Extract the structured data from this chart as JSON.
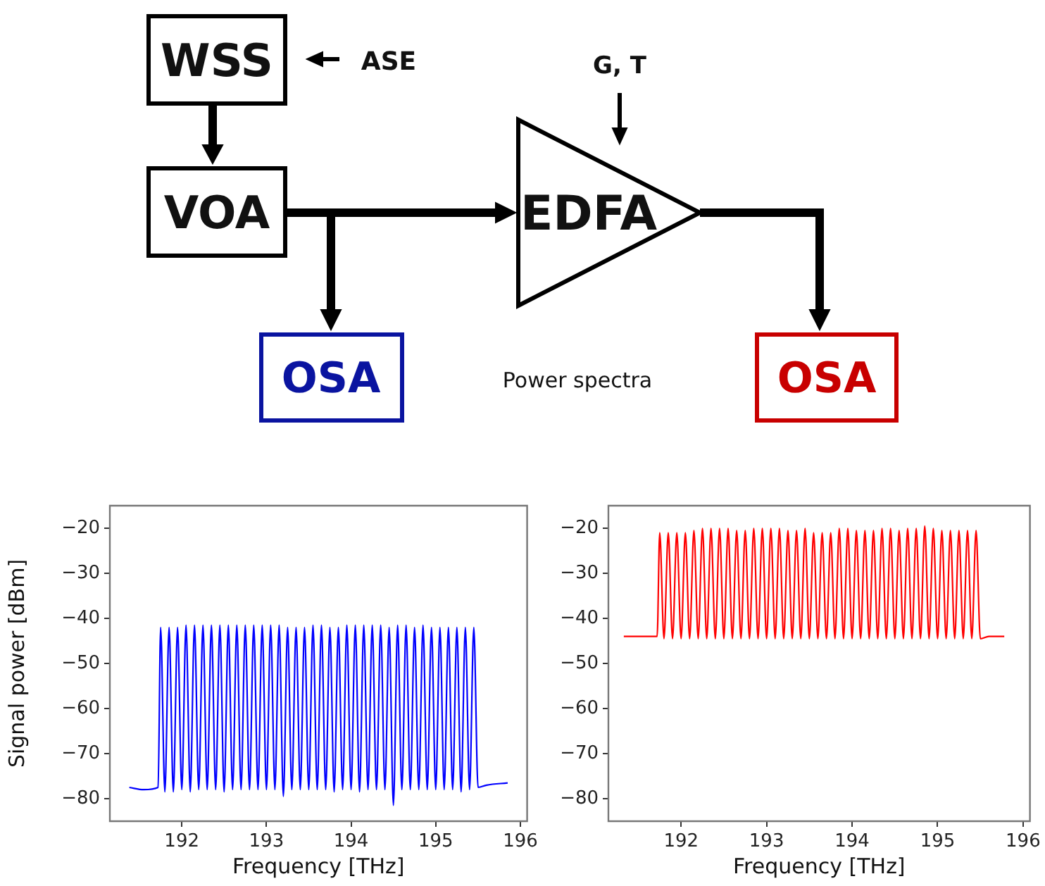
{
  "chart_data": [
    {
      "type": "other",
      "annotations": [
        "WSS",
        "ASE",
        "VOA",
        "EDFA",
        "G, T",
        "OSA",
        "OSA",
        "Power spectra"
      ]
    },
    {
      "type": "line",
      "xlabel": "Frequency [THz]",
      "ylabel": "Signal power [dBm]",
      "xlim": [
        191.15,
        196.08
      ],
      "ylim": [
        -85,
        -15
      ],
      "xticks": [
        192,
        193,
        194,
        195,
        196
      ],
      "yticks": [
        -20,
        -30,
        -40,
        -50,
        -60,
        -70,
        -80
      ],
      "grid": false,
      "x": [
        191.38,
        191.55,
        191.72,
        191.75,
        191.8,
        191.85,
        191.9,
        191.95,
        192,
        192.05,
        192.1,
        192.15,
        192.2,
        192.25,
        192.3,
        192.35,
        192.4,
        192.45,
        192.5,
        192.55,
        192.6,
        192.65,
        192.7,
        192.75,
        192.8,
        192.85,
        192.9,
        192.95,
        193,
        193.05,
        193.1,
        193.15,
        193.2,
        193.25,
        193.3,
        193.35,
        193.4,
        193.45,
        193.5,
        193.55,
        193.6,
        193.65,
        193.7,
        193.75,
        193.8,
        193.85,
        193.9,
        193.95,
        194,
        194.05,
        194.1,
        194.15,
        194.2,
        194.25,
        194.3,
        194.35,
        194.4,
        194.45,
        194.5,
        194.55,
        194.6,
        194.65,
        194.7,
        194.75,
        194.8,
        194.85,
        194.9,
        194.95,
        195,
        195.05,
        195.1,
        195.15,
        195.2,
        195.25,
        195.3,
        195.35,
        195.4,
        195.45,
        195.5,
        195.6,
        195.85
      ],
      "series": [
        {
          "color": "#0000ff",
          "values": [
            -77.5,
            -78,
            -77.5,
            -42,
            -78.5,
            -42,
            -78.5,
            -42,
            -78,
            -41.5,
            -78.5,
            -41.5,
            -78,
            -41.5,
            -78,
            -41.5,
            -78,
            -41.5,
            -78.5,
            -41.5,
            -78,
            -41.5,
            -78,
            -41.5,
            -78,
            -41.5,
            -78,
            -41.5,
            -78,
            -41.5,
            -78,
            -41.5,
            -79.5,
            -42,
            -78,
            -42,
            -78,
            -42,
            -78,
            -41.5,
            -78,
            -41.5,
            -78,
            -42,
            -78.5,
            -42,
            -78,
            -41.5,
            -78,
            -41.5,
            -78.5,
            -41.5,
            -78,
            -41.5,
            -78,
            -41.5,
            -78,
            -42,
            -81.5,
            -41.5,
            -78,
            -41.5,
            -78,
            -42,
            -78,
            -41.5,
            -78,
            -42,
            -78,
            -42,
            -78,
            -42,
            -78,
            -42,
            -78.5,
            -42,
            -78,
            -42,
            -77.5,
            -77,
            -76.5
          ]
        }
      ]
    },
    {
      "type": "line",
      "xlabel": "Frequency [THz]",
      "xlim": [
        191.15,
        196.08
      ],
      "ylim": [
        -85,
        -15
      ],
      "xticks": [
        192,
        193,
        194,
        195,
        196
      ],
      "yticks": [
        -20,
        -30,
        -40,
        -50,
        -60,
        -70,
        -80
      ],
      "grid": false,
      "x": [
        191.33,
        191.72,
        191.75,
        191.8,
        191.85,
        191.9,
        191.95,
        192,
        192.05,
        192.1,
        192.15,
        192.2,
        192.25,
        192.3,
        192.35,
        192.4,
        192.45,
        192.5,
        192.55,
        192.6,
        192.65,
        192.7,
        192.75,
        192.8,
        192.85,
        192.9,
        192.95,
        193,
        193.05,
        193.1,
        193.15,
        193.2,
        193.25,
        193.3,
        193.35,
        193.4,
        193.45,
        193.5,
        193.55,
        193.6,
        193.65,
        193.7,
        193.75,
        193.8,
        193.85,
        193.9,
        193.95,
        194,
        194.05,
        194.1,
        194.15,
        194.2,
        194.25,
        194.3,
        194.35,
        194.4,
        194.45,
        194.5,
        194.55,
        194.6,
        194.65,
        194.7,
        194.75,
        194.8,
        194.85,
        194.9,
        194.95,
        195,
        195.05,
        195.1,
        195.15,
        195.2,
        195.25,
        195.3,
        195.35,
        195.4,
        195.45,
        195.5,
        195.6,
        195.78
      ],
      "series": [
        {
          "color": "#ff0000",
          "values": [
            -44,
            -44,
            -21,
            -44.5,
            -21,
            -44.5,
            -21,
            -44.5,
            -21,
            -44.5,
            -20.5,
            -44.5,
            -20,
            -44.5,
            -20,
            -44.5,
            -20,
            -44.5,
            -20,
            -44.5,
            -20.5,
            -44.5,
            -20.5,
            -44.5,
            -20,
            -44.5,
            -20,
            -44.5,
            -20,
            -44.5,
            -20,
            -44.5,
            -20.5,
            -44.5,
            -20.5,
            -44.5,
            -20,
            -44.5,
            -21,
            -44.5,
            -21,
            -44.5,
            -21,
            -44.5,
            -20,
            -44.5,
            -20,
            -44.5,
            -20.5,
            -44.5,
            -20.5,
            -44.5,
            -20.5,
            -44.5,
            -20,
            -44.5,
            -20,
            -44.5,
            -20.5,
            -44.5,
            -20,
            -44.5,
            -20,
            -44.5,
            -19.5,
            -44.5,
            -20,
            -44.5,
            -20.5,
            -44.5,
            -20.5,
            -44.5,
            -20.5,
            -44.5,
            -20.5,
            -44.5,
            -20.5,
            -44.5,
            -44,
            -44
          ]
        }
      ]
    }
  ]
}
